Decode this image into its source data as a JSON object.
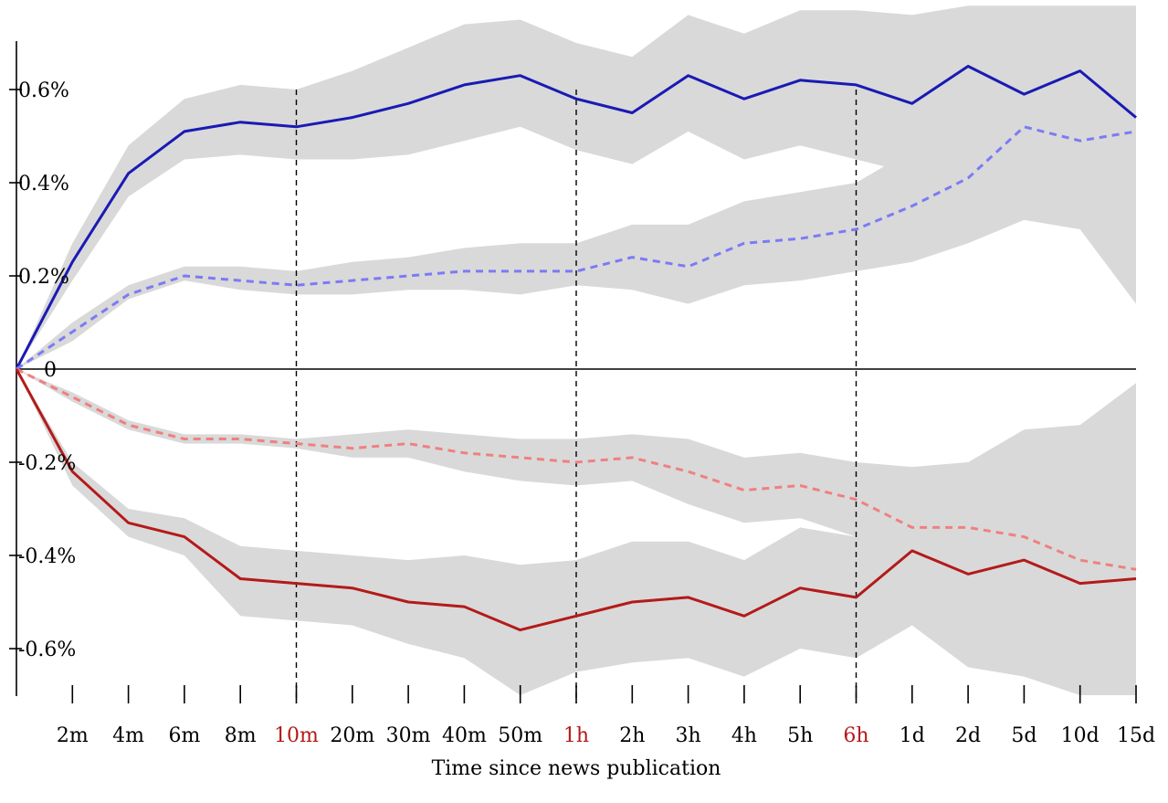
{
  "chart_data": {
    "type": "line",
    "title": "",
    "xlabel": "Time since news publication",
    "ylabel": "",
    "ylim": [
      -0.7,
      0.78
    ],
    "grid": false,
    "legend": "none",
    "x_ticks": [
      "2m",
      "4m",
      "6m",
      "8m",
      "10m",
      "20m",
      "30m",
      "40m",
      "50m",
      "1h",
      "2h",
      "3h",
      "4h",
      "5h",
      "6h",
      "1d",
      "2d",
      "5d",
      "10d",
      "15d"
    ],
    "highlighted_ticks": [
      "10m",
      "1h",
      "6h"
    ],
    "vertical_markers": [
      "10m",
      "1h",
      "6h"
    ],
    "y_ticks": [
      {
        "value": 0.6,
        "label": "0.6%"
      },
      {
        "value": 0.4,
        "label": "0.4%"
      },
      {
        "value": 0.2,
        "label": "0.2%"
      },
      {
        "value": 0.0,
        "label": "0"
      },
      {
        "value": -0.2,
        "label": "-0.2%"
      },
      {
        "value": -0.4,
        "label": "-0.4%"
      },
      {
        "value": -0.6,
        "label": "-0.6%"
      }
    ],
    "series": [
      {
        "style": "solid",
        "color": "#1a1ab4",
        "values": [
          0,
          0.23,
          0.42,
          0.51,
          0.53,
          0.52,
          0.54,
          0.57,
          0.61,
          0.63,
          0.58,
          0.55,
          0.63,
          0.58,
          0.62,
          0.61,
          0.57,
          0.65,
          0.59,
          0.64,
          0.54
        ],
        "band_upper": [
          0,
          0.27,
          0.48,
          0.58,
          0.61,
          0.6,
          0.64,
          0.69,
          0.74,
          0.75,
          0.7,
          0.67,
          0.76,
          0.72,
          0.77,
          0.77,
          0.76,
          0.78,
          0.78,
          0.78,
          0.78
        ],
        "band_lower": [
          0,
          0.19,
          0.37,
          0.45,
          0.46,
          0.45,
          0.45,
          0.46,
          0.49,
          0.52,
          0.47,
          0.44,
          0.51,
          0.45,
          0.48,
          0.45,
          0.42,
          0.5,
          0.43,
          0.48,
          0.35
        ]
      },
      {
        "style": "dashed",
        "color": "#7b7bf5",
        "values": [
          0,
          0.08,
          0.16,
          0.2,
          0.19,
          0.18,
          0.19,
          0.2,
          0.21,
          0.21,
          0.21,
          0.24,
          0.22,
          0.27,
          0.28,
          0.3,
          0.35,
          0.41,
          0.52,
          0.49,
          0.51
        ],
        "band_upper": [
          0,
          0.1,
          0.18,
          0.22,
          0.22,
          0.21,
          0.23,
          0.24,
          0.26,
          0.27,
          0.27,
          0.31,
          0.31,
          0.36,
          0.38,
          0.4,
          0.47,
          0.55,
          0.73,
          0.66,
          0.73
        ],
        "band_lower": [
          0,
          0.06,
          0.15,
          0.19,
          0.17,
          0.16,
          0.16,
          0.17,
          0.17,
          0.16,
          0.18,
          0.17,
          0.14,
          0.18,
          0.19,
          0.21,
          0.23,
          0.27,
          0.32,
          0.3,
          0.14
        ]
      },
      {
        "style": "dashed",
        "color": "#f08080",
        "values": [
          0,
          -0.06,
          -0.12,
          -0.15,
          -0.15,
          -0.16,
          -0.17,
          -0.16,
          -0.18,
          -0.19,
          -0.2,
          -0.19,
          -0.22,
          -0.26,
          -0.25,
          -0.28,
          -0.34,
          -0.34,
          -0.36,
          -0.41,
          -0.43
        ],
        "band_upper": [
          0,
          -0.05,
          -0.11,
          -0.14,
          -0.14,
          -0.15,
          -0.14,
          -0.13,
          -0.14,
          -0.15,
          -0.15,
          -0.14,
          -0.15,
          -0.19,
          -0.18,
          -0.2,
          -0.21,
          -0.2,
          -0.13,
          -0.12,
          -0.03
        ],
        "band_lower": [
          0,
          -0.07,
          -0.13,
          -0.16,
          -0.16,
          -0.17,
          -0.19,
          -0.19,
          -0.22,
          -0.24,
          -0.25,
          -0.24,
          -0.29,
          -0.33,
          -0.32,
          -0.36,
          -0.44,
          -0.46,
          -0.49,
          -0.59,
          -0.62
        ]
      },
      {
        "style": "solid",
        "color": "#b41a1a",
        "values": [
          0,
          -0.22,
          -0.33,
          -0.36,
          -0.45,
          -0.46,
          -0.47,
          -0.5,
          -0.51,
          -0.56,
          -0.53,
          -0.5,
          -0.49,
          -0.53,
          -0.47,
          -0.49,
          -0.39,
          -0.44,
          -0.41,
          -0.46,
          -0.45
        ],
        "band_upper": [
          0,
          -0.2,
          -0.3,
          -0.32,
          -0.38,
          -0.39,
          -0.4,
          -0.41,
          -0.4,
          -0.42,
          -0.41,
          -0.37,
          -0.37,
          -0.41,
          -0.34,
          -0.36,
          -0.27,
          -0.3,
          -0.28,
          -0.31,
          -0.3
        ],
        "band_lower": [
          0,
          -0.25,
          -0.36,
          -0.4,
          -0.53,
          -0.54,
          -0.55,
          -0.59,
          -0.62,
          -0.7,
          -0.65,
          -0.63,
          -0.62,
          -0.66,
          -0.6,
          -0.62,
          -0.55,
          -0.64,
          -0.66,
          -0.7,
          -0.7
        ]
      }
    ]
  }
}
